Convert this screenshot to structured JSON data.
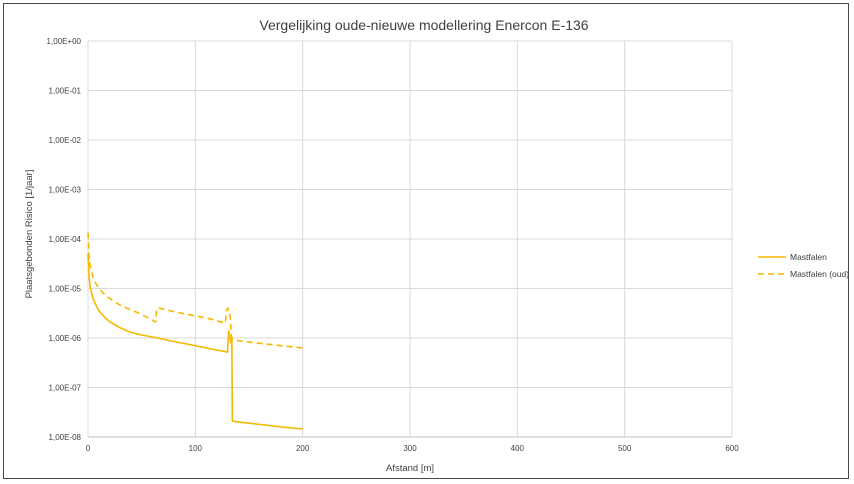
{
  "chart_data": {
    "type": "line",
    "title": "Vergelijking oude-nieuwe modellering Enercon E-136",
    "xlabel": "Afstand [m]",
    "ylabel": "Plaatsgebonden Risico [1/jaar]",
    "x_ticks": [
      0,
      100,
      200,
      300,
      400,
      500,
      600
    ],
    "x_tick_labels": [
      "0",
      "100",
      "200",
      "300",
      "400",
      "500",
      "600"
    ],
    "y_ticks": [
      1e-08,
      1e-07,
      1e-06,
      1e-05,
      0.0001,
      0.001,
      0.01,
      0.1,
      1
    ],
    "y_tick_labels": [
      "1,00E-08",
      "1,00E-07",
      "1,00E-06",
      "1,00E-05",
      "1,00E-04",
      "1,00E-03",
      "1,00E-02",
      "1,00E-01",
      "1,00E+00"
    ],
    "xlim": [
      0,
      600
    ],
    "ylim": [
      1e-08,
      1
    ],
    "yscale": "log",
    "grid": true,
    "legend_position": "right",
    "color": "#f5b800",
    "series": [
      {
        "name": "Mastfalen",
        "style": "solid",
        "x": [
          0,
          1,
          2,
          4,
          7,
          10,
          15,
          20,
          30,
          40,
          50,
          65,
          80,
          100,
          115,
          130,
          131,
          132,
          133,
          134,
          134.5,
          135,
          140,
          160,
          180,
          200
        ],
        "y": [
          5e-05,
          1.7e-05,
          1.1e-05,
          7e-06,
          4.8e-06,
          3.6e-06,
          2.7e-06,
          2.15e-06,
          1.6e-06,
          1.3e-06,
          1.15e-06,
          1e-06,
          8.5e-07,
          7e-07,
          6e-07,
          5.2e-07,
          1.4e-06,
          1.1e-06,
          8e-07,
          1e-06,
          2.1e-08,
          2.1e-08,
          2e-08,
          1.8e-08,
          1.6e-08,
          1.45e-08
        ]
      },
      {
        "name": "Mastfalen (oud)",
        "style": "dashed",
        "x": [
          0,
          1,
          2,
          4,
          7,
          10,
          15,
          20,
          30,
          40,
          50,
          63,
          64,
          65,
          80,
          100,
          115,
          128,
          129,
          130,
          132,
          133,
          133.5,
          134,
          140,
          160,
          180,
          200
        ],
        "y": [
          0.000135,
          4.5e-05,
          3e-05,
          1.9e-05,
          1.3e-05,
          1e-05,
          7.8e-06,
          6.3e-06,
          4.6e-06,
          3.7e-06,
          3e-06,
          2.1e-06,
          3.8e-06,
          4.1e-06,
          3.4e-06,
          2.8e-06,
          2.4e-06,
          2e-06,
          3.5e-06,
          4e-06,
          3.5e-06,
          1.8e-06,
          1.2e-06,
          9.8e-07,
          8.8e-07,
          7.8e-07,
          7e-07,
          6.3e-07
        ]
      }
    ]
  }
}
